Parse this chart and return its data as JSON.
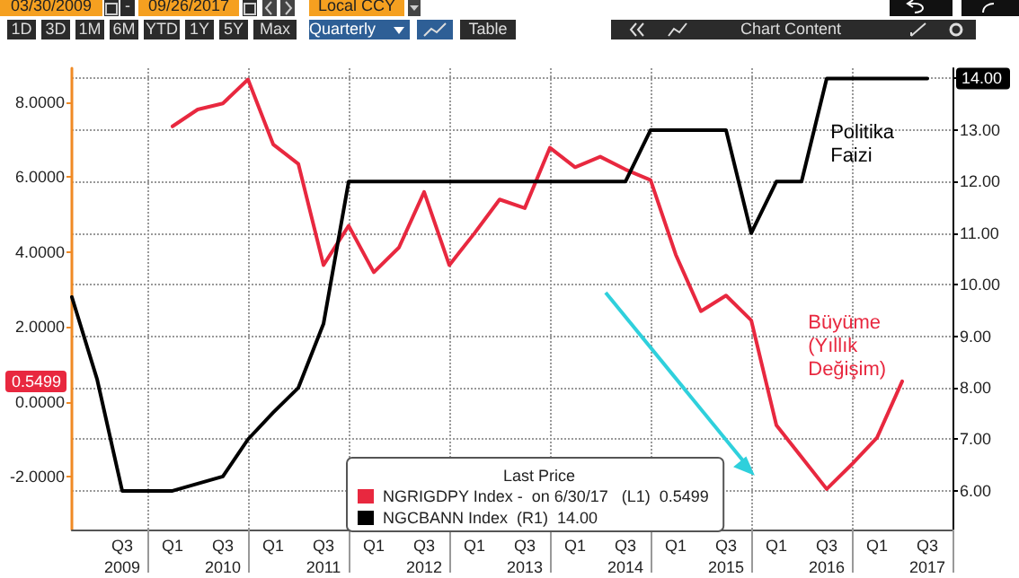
{
  "chart_data": {
    "type": "line",
    "categories": [
      null,
      null,
      "Q3\n2009",
      null,
      "Q1",
      null,
      "Q3\n2010",
      null,
      "Q1",
      null,
      "Q3\n2011",
      null,
      "Q1",
      null,
      "Q3\n2012",
      null,
      "Q1",
      null,
      "Q3\n2013",
      null,
      "Q1",
      null,
      "Q3\n2014",
      null,
      "Q1",
      null,
      "Q3\n2015",
      null,
      "Q1",
      null,
      "Q3\n2016",
      null,
      "Q1",
      null,
      "Q3\n2017",
      null
    ],
    "series": [
      {
        "name": "NGRIGDPY Index -  on 6/30/17   (L1)  0.5499",
        "color": "#e8283f",
        "axis": "y",
        "values": [
          null,
          null,
          null,
          null,
          7.35,
          7.8,
          7.96,
          8.6,
          6.87,
          6.35,
          3.65,
          4.7,
          3.46,
          4.12,
          5.6,
          3.65,
          4.5,
          5.4,
          5.17,
          6.78,
          6.26,
          6.54,
          6.2,
          5.92,
          3.93,
          2.42,
          2.84,
          2.18,
          -0.62,
          -1.47,
          -2.32,
          -1.66,
          -0.95,
          0.5499,
          null,
          null
        ]
      },
      {
        "name": "NGCBANN Index  (R1)  14.00",
        "color": "#000000",
        "axis": "y2",
        "values": [
          9.76,
          8.17,
          6.0,
          6.0,
          6.0,
          6.14,
          6.28,
          7.0,
          7.52,
          8.0,
          9.24,
          12,
          12,
          12,
          12,
          12,
          12,
          12,
          12,
          12,
          12,
          12,
          12,
          13,
          13,
          13,
          13,
          11,
          12,
          12,
          14,
          14,
          14,
          14,
          14,
          null
        ]
      }
    ],
    "ylim": [
      -3.4,
      8.9
    ],
    "yticks": [
      {
        "value": -2,
        "label": "-2.0000"
      },
      {
        "value": 0,
        "label": "0.0000"
      },
      {
        "value": 2,
        "label": "2.0000"
      },
      {
        "value": 4,
        "label": "4.0000"
      },
      {
        "value": 6,
        "label": "6.0000"
      },
      {
        "value": 8,
        "label": "8.0000"
      }
    ],
    "y2lim": [
      5.25,
      14.2
    ],
    "y2ticks": [
      {
        "value": 6,
        "label": "6.00"
      },
      {
        "value": 7,
        "label": "7.00"
      },
      {
        "value": 8,
        "label": "8.00"
      },
      {
        "value": 9,
        "label": "9.00"
      },
      {
        "value": 10,
        "label": "10.00"
      },
      {
        "value": 11,
        "label": "11.00"
      },
      {
        "value": 12,
        "label": "12.00"
      },
      {
        "value": 13,
        "label": "13.00"
      },
      {
        "value": 14,
        "label": null
      }
    ],
    "grid": true,
    "legend": "bottom",
    "legend_title": "Last Price",
    "marker": "none",
    "line_style": "solid",
    "annotations": [
      "03/30/2009",
      "-",
      "09/26/2017",
      "Local CCY",
      "1D",
      "3D",
      "1M",
      "6M",
      "YTD",
      "1Y",
      "5Y",
      "Max",
      "Quarterly",
      "Table",
      "Chart Content",
      "0.5499",
      "14.00",
      "Politika\nFaizi",
      "Büyüme\n(Yıllık\nDeğişim)"
    ]
  }
}
